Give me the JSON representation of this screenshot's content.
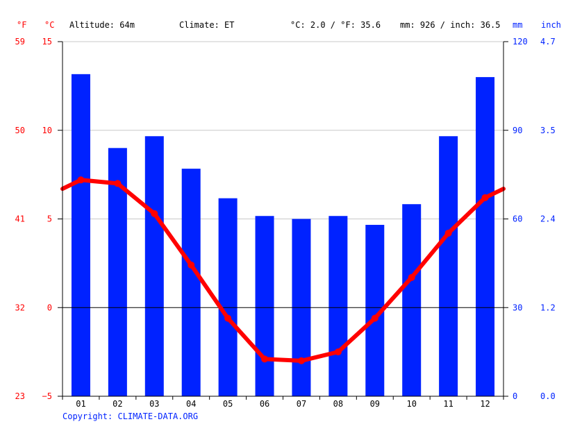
{
  "header": {
    "unit_f": "°F",
    "unit_c": "°C",
    "altitude": "Altitude: 64m",
    "climate": "Climate: ET",
    "temp_summary": "°C: 2.0 / °F: 35.6",
    "precip_summary": "mm: 926 / inch: 36.5",
    "unit_mm": "mm",
    "unit_inch": "inch"
  },
  "axes": {
    "left_f_ticks": [
      "59",
      "50",
      "41",
      "32",
      "23"
    ],
    "left_c_ticks": [
      "15",
      "10",
      "5",
      "0",
      "−5"
    ],
    "right_mm_ticks": [
      "120",
      "90",
      "60",
      "30",
      "0"
    ],
    "right_inch_ticks": [
      "4.7",
      "3.5",
      "2.4",
      "1.2",
      "0.0"
    ]
  },
  "copyright": "Copyright: CLIMATE-DATA.ORG",
  "colors": {
    "precip_bar": "#0022ff",
    "temp_line": "#ff0000",
    "grid": "#c8c8c8",
    "axis_left": "#ff0000",
    "axis_right": "#0022ff"
  },
  "chart_data": {
    "type": "bar",
    "categories": [
      "01",
      "02",
      "03",
      "04",
      "05",
      "06",
      "07",
      "08",
      "09",
      "10",
      "11",
      "12"
    ],
    "series": [
      {
        "type": "bar",
        "axis": "right",
        "values": [
          109,
          84,
          88,
          77,
          67,
          61,
          60,
          61,
          58,
          65,
          88,
          108
        ]
      },
      {
        "type": "line",
        "axis": "left",
        "values": [
          7.2,
          7.0,
          5.3,
          2.4,
          -0.6,
          -2.9,
          -3.0,
          -2.5,
          -0.6,
          1.7,
          4.2,
          6.2
        ]
      }
    ],
    "y_left_c_range": [
      -5,
      15
    ],
    "y_right_mm_range": [
      0,
      120
    ],
    "grid": true,
    "zero_line": true
  }
}
